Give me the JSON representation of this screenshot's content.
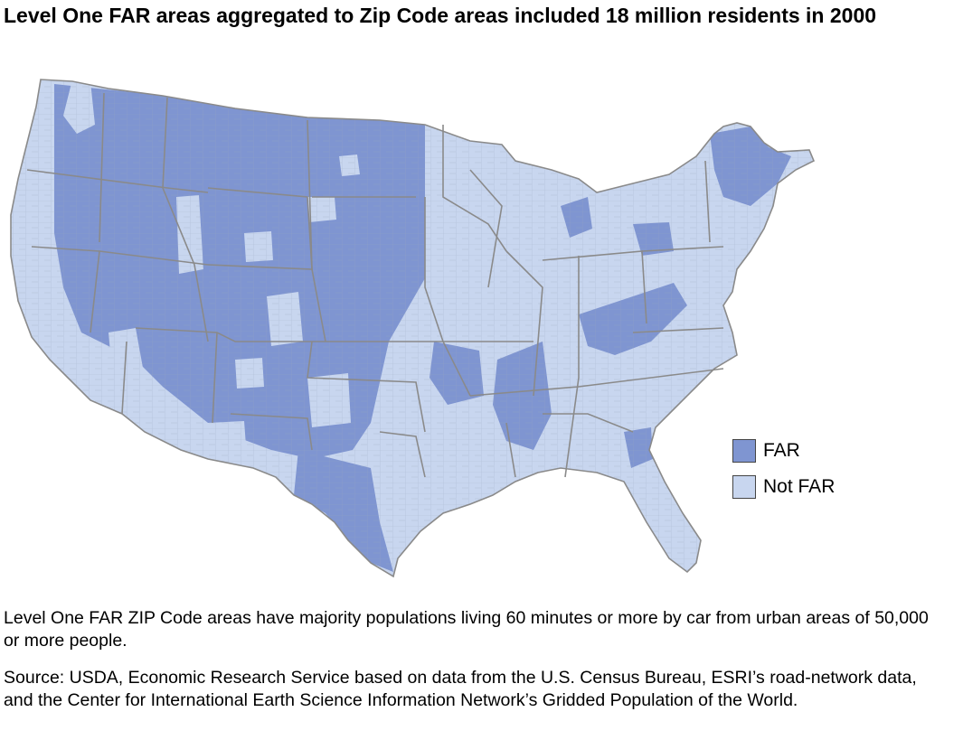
{
  "title": "Level One FAR areas aggregated to Zip Code areas included 18 million residents in 2000",
  "legend": {
    "items": [
      {
        "label": "FAR",
        "color": "#7f95d1"
      },
      {
        "label": "Not FAR",
        "color": "#c8d6ef"
      }
    ]
  },
  "colors": {
    "far": "#7f95d1",
    "not_far": "#c8d6ef",
    "boundary": "#8a8a8a"
  },
  "note": "Level One FAR ZIP Code areas have majority populations living 60 minutes or more by car from urban areas of 50,000 or more people.",
  "source": "Source: USDA, Economic Research Service based on data from the U.S. Census Bureau, ESRI’s road-network data, and the Center for International Earth Science Information Network’s Gridded Population of the World."
}
